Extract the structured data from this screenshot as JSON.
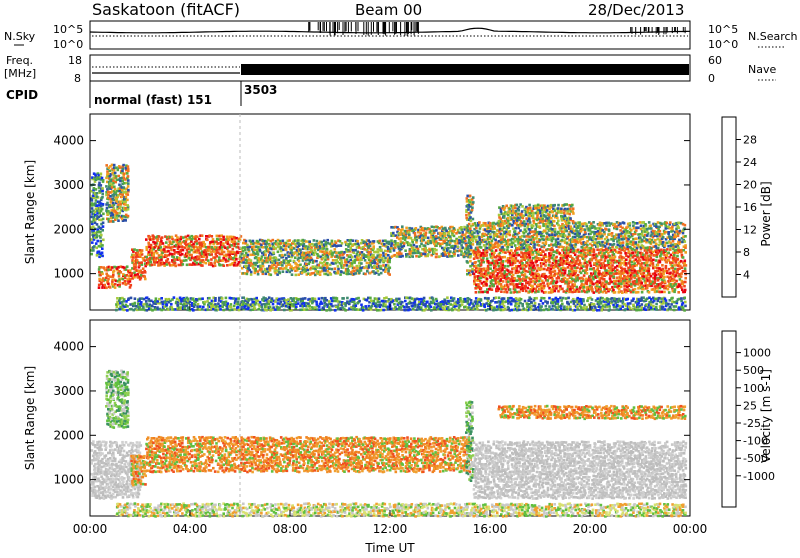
{
  "header": {
    "station": "Saskatoon (fitACF)",
    "beam": "Beam 00",
    "date": "28/Dec/2013"
  },
  "noise_panel": {
    "left_label": "N.Sky",
    "right_label": "N.Search",
    "left_ticks": [
      "10^5",
      "10^0"
    ],
    "right_ticks": [
      "10^5",
      "10^0"
    ]
  },
  "freq_panel": {
    "left_label_line1": "Freq.",
    "left_label_line2": "[MHz]",
    "left_ticks": [
      "18",
      "8"
    ],
    "right_label": "Nave",
    "right_ticks": [
      "60",
      "0"
    ]
  },
  "cpid_panel": {
    "label": "CPID",
    "segments": [
      {
        "label": "normal (fast) 151",
        "start_hour": 0
      },
      {
        "label": "3503",
        "start_hour": 6
      }
    ]
  },
  "chart_data": [
    {
      "type": "heatmap",
      "name": "Power",
      "ylabel": "Slant Range [km]",
      "ylim": [
        180,
        4600
      ],
      "y_ticks": [
        1000,
        2000,
        3000,
        4000
      ],
      "colorbar_label": "Power [dB]",
      "colorbar_ticks": [
        "4",
        "8",
        "12",
        "16",
        "20",
        "24",
        "28"
      ],
      "colorbar_colors": [
        "#1030f0",
        "#2a4fa8",
        "#3f8a70",
        "#55aa40",
        "#a6c93a",
        "#f0a020",
        "#f07020",
        "#f0401a",
        "#e80010"
      ],
      "regions": [
        {
          "t0": 0.0,
          "t1": 0.5,
          "r0": 1400,
          "r1": 3300,
          "level": "low"
        },
        {
          "t0": 0.3,
          "t1": 1.6,
          "r0": 700,
          "r1": 1200,
          "level": "high"
        },
        {
          "t0": 1.6,
          "t1": 2.2,
          "r0": 900,
          "r1": 1600,
          "level": "high"
        },
        {
          "t0": 0.6,
          "t1": 1.5,
          "r0": 2200,
          "r1": 3500,
          "level": "mid"
        },
        {
          "t0": 2.2,
          "t1": 6.0,
          "r0": 1200,
          "r1": 1900,
          "level": "high"
        },
        {
          "t0": 6.0,
          "t1": 12.0,
          "r0": 1000,
          "r1": 1800,
          "level": "mid"
        },
        {
          "t0": 12.0,
          "t1": 15.2,
          "r0": 1400,
          "r1": 2100,
          "level": "mid"
        },
        {
          "t0": 15.0,
          "t1": 15.3,
          "r0": 1000,
          "r1": 2800,
          "level": "mid"
        },
        {
          "t0": 15.3,
          "t1": 23.8,
          "r0": 600,
          "r1": 1600,
          "level": "high"
        },
        {
          "t0": 15.3,
          "t1": 23.8,
          "r0": 1600,
          "r1": 2200,
          "level": "mid"
        },
        {
          "t0": 16.3,
          "t1": 19.3,
          "r0": 2200,
          "r1": 2600,
          "level": "mid"
        },
        {
          "t0": 1.0,
          "t1": 23.8,
          "r0": 200,
          "r1": 500,
          "level": "low"
        }
      ]
    },
    {
      "type": "heatmap",
      "name": "Velocity",
      "ylabel": "Slant Range [km]",
      "ylim": [
        180,
        4600
      ],
      "y_ticks": [
        1000,
        2000,
        3000,
        4000
      ],
      "colorbar_label": "Velocity [m s-1]",
      "colorbar_ticks": [
        "1000",
        "500",
        "100",
        "25",
        "-25",
        "-100",
        "-500",
        "-1000"
      ],
      "colorbar_colors": [
        "#2040c0",
        "#3a7890",
        "#3a9060",
        "#60c040",
        "#c8c8c8",
        "#c8c8c8",
        "#f0a030",
        "#f08020",
        "#f05020",
        "#e80010"
      ],
      "regions": [
        {
          "t0": 0.0,
          "t1": 2.0,
          "r0": 600,
          "r1": 1900,
          "level": "gray"
        },
        {
          "t0": 0.6,
          "t1": 1.5,
          "r0": 2200,
          "r1": 3500,
          "level": "green"
        },
        {
          "t0": 1.6,
          "t1": 2.2,
          "r0": 900,
          "r1": 1600,
          "level": "orange"
        },
        {
          "t0": 2.2,
          "t1": 15.2,
          "r0": 1200,
          "r1": 2000,
          "level": "orange"
        },
        {
          "t0": 15.0,
          "t1": 15.3,
          "r0": 1000,
          "r1": 2800,
          "level": "green"
        },
        {
          "t0": 15.3,
          "t1": 23.8,
          "r0": 600,
          "r1": 1900,
          "level": "gray"
        },
        {
          "t0": 16.3,
          "t1": 23.8,
          "r0": 2400,
          "r1": 2700,
          "level": "orange"
        },
        {
          "t0": 1.0,
          "t1": 23.8,
          "r0": 200,
          "r1": 500,
          "level": "low"
        }
      ]
    }
  ],
  "x_axis": {
    "label": "Time UT",
    "ticks": [
      "00:00",
      "04:00",
      "08:00",
      "12:00",
      "16:00",
      "20:00",
      "00:00"
    ],
    "range_hours": [
      0,
      24
    ]
  }
}
